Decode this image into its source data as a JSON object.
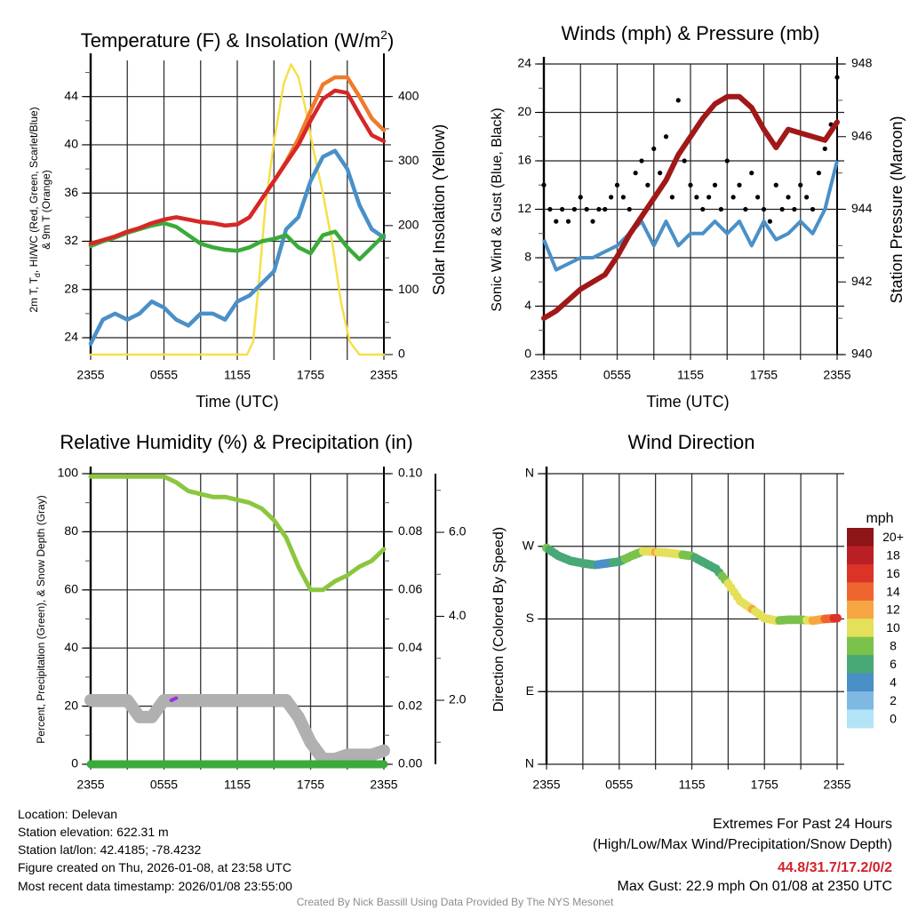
{
  "chart_data": [
    {
      "type": "line",
      "title_main": "Temperature (F) & Insolation (W/m",
      "title_sup": "2",
      "title_end": ")",
      "xlabel": "Time (UTC)",
      "ylabel_line1_a": "2m T, T",
      "ylabel_line1_sub": "d",
      "ylabel_line1_b": ", HI/WC (Red, Green, Scarlet/Blue)",
      "ylabel_line2": "& 9m T (Orange)",
      "ylabel_right": "Solar Insolation (Yellow)",
      "xticks": [
        "2355",
        "0555",
        "1155",
        "1755",
        "2355"
      ],
      "yticks_left": [
        "24",
        "28",
        "32",
        "36",
        "40",
        "44"
      ],
      "yticks_right": [
        "0",
        "100",
        "200",
        "300",
        "400"
      ],
      "ylim_left": [
        22.6,
        47.0
      ],
      "ylim_right": [
        0,
        456
      ],
      "x_hours": [
        0,
        1,
        2,
        3,
        4,
        5,
        6,
        7,
        8,
        9,
        10,
        11,
        12,
        13,
        14,
        15,
        16,
        17,
        18,
        19,
        20,
        21,
        22,
        23,
        24
      ],
      "series": [
        {
          "name": "2m T",
          "color": "#d62728",
          "axis": "left",
          "values": [
            31.8,
            32.1,
            32.4,
            32.8,
            33.1,
            33.5,
            33.8,
            34.0,
            33.8,
            33.6,
            33.5,
            33.3,
            33.4,
            34.0,
            35.5,
            37.0,
            38.5,
            40.0,
            42.0,
            43.8,
            44.5,
            44.3,
            42.5,
            40.8,
            40.3
          ]
        },
        {
          "name": "9m T",
          "color": "#f07b2a",
          "axis": "left",
          "values": [
            31.8,
            32.1,
            32.4,
            32.8,
            33.1,
            33.5,
            33.8,
            34.0,
            33.8,
            33.6,
            33.5,
            33.3,
            33.4,
            34.0,
            35.5,
            37.0,
            38.6,
            40.5,
            42.8,
            45.0,
            45.6,
            45.6,
            44.0,
            42.2,
            41.2
          ]
        },
        {
          "name": "Td",
          "color": "#3aab3a",
          "axis": "left",
          "values": [
            31.6,
            32.0,
            32.3,
            32.7,
            33.0,
            33.3,
            33.5,
            33.2,
            32.5,
            31.8,
            31.5,
            31.3,
            31.2,
            31.5,
            32.0,
            32.2,
            32.5,
            31.5,
            31.0,
            32.5,
            32.8,
            31.5,
            30.5,
            31.5,
            32.5
          ]
        },
        {
          "name": "HI/WC",
          "color": "#4a90c8",
          "axis": "left",
          "values": [
            23.5,
            25.5,
            26.0,
            25.5,
            26.0,
            27.0,
            26.5,
            25.5,
            25.0,
            26.0,
            26.0,
            25.5,
            27.0,
            27.5,
            28.5,
            29.5,
            33.0,
            34.0,
            37.0,
            39.0,
            39.5,
            38.0,
            35.0,
            33.0,
            32.3
          ]
        },
        {
          "name": "Insolation",
          "color": "#f5e04a",
          "axis": "right",
          "x": [
            0,
            12.8,
            13.3,
            13.8,
            14.3,
            15.0,
            15.8,
            16.4,
            17.0,
            17.6,
            18.2,
            19.0,
            19.8,
            20.5,
            21.2,
            22.0,
            24
          ],
          "values": [
            0,
            0,
            20,
            120,
            230,
            330,
            420,
            450,
            430,
            380,
            320,
            250,
            170,
            80,
            20,
            0,
            0
          ]
        }
      ]
    },
    {
      "type": "line",
      "title": "Winds (mph) & Pressure (mb)",
      "xlabel": "Time (UTC)",
      "ylabel_left": "Sonic Wind & Gust (Blue, Black)",
      "ylabel_right": "Station Pressure (Maroon)",
      "xticks": [
        "2355",
        "0555",
        "1155",
        "1755",
        "2355"
      ],
      "yticks_left": [
        "0",
        "4",
        "8",
        "12",
        "16",
        "20",
        "24"
      ],
      "yticks_right": [
        "940",
        "942",
        "944",
        "946",
        "948"
      ],
      "ylim_left": [
        0,
        24
      ],
      "ylim_right": [
        940,
        948
      ],
      "x_hours": [
        0,
        1,
        2,
        3,
        4,
        5,
        6,
        7,
        8,
        9,
        10,
        11,
        12,
        13,
        14,
        15,
        16,
        17,
        18,
        19,
        20,
        21,
        22,
        23,
        24
      ],
      "series": [
        {
          "name": "Sonic Wind",
          "color": "#4a90c8",
          "axis": "left",
          "values": [
            9.5,
            7.0,
            7.5,
            8.0,
            8.0,
            8.5,
            9.0,
            10.0,
            11.0,
            9.0,
            11.0,
            9.0,
            10.0,
            10.0,
            11.0,
            10.0,
            11.0,
            9.0,
            11.0,
            9.5,
            10.0,
            11.0,
            10.0,
            12.0,
            16.0
          ]
        },
        {
          "name": "Station Pressure",
          "color": "#a01818",
          "axis": "right",
          "values": [
            941.0,
            941.2,
            941.5,
            941.8,
            942.0,
            942.2,
            942.7,
            943.3,
            943.8,
            944.3,
            944.8,
            945.5,
            946.0,
            946.5,
            946.9,
            947.1,
            947.1,
            946.8,
            946.2,
            945.7,
            946.2,
            946.1,
            946.0,
            945.9,
            946.4
          ]
        }
      ],
      "gust_points": {
        "color": "#000000",
        "step_hours": 0.5,
        "values": [
          14,
          12,
          11,
          12,
          11,
          12,
          13,
          12,
          11,
          12,
          12,
          13,
          14,
          13,
          12,
          15,
          16,
          14,
          17,
          15,
          18,
          13,
          21,
          16,
          14,
          13,
          12,
          13,
          14,
          12,
          16,
          13,
          14,
          12,
          15,
          13,
          12,
          11,
          14,
          12,
          13,
          12,
          14,
          13,
          12,
          15,
          17,
          19,
          22.9
        ]
      }
    },
    {
      "type": "line",
      "title": "Relative Humidity (%) & Precipitation (in)",
      "ylabel_left": "Percent, Precipitation (Green), & Snow Depth (Gray)",
      "xticks": [
        "2355",
        "0555",
        "1155",
        "1755",
        "2355"
      ],
      "yticks_left": [
        "0",
        "20",
        "40",
        "60",
        "80",
        "100"
      ],
      "yticks_right": [
        "0.00",
        "0.02",
        "0.04",
        "0.06",
        "0.08",
        "0.10"
      ],
      "yticks_snow": [
        "2.0",
        "4.0",
        "6.0"
      ],
      "ylim_left": [
        0,
        100
      ],
      "ylim_right": [
        0,
        0.1
      ],
      "x_hours": [
        0,
        1,
        2,
        3,
        4,
        5,
        6,
        7,
        8,
        9,
        10,
        11,
        12,
        13,
        14,
        15,
        16,
        17,
        18,
        19,
        20,
        21,
        22,
        23,
        24
      ],
      "series": [
        {
          "name": "Relative Humidity",
          "color": "#8cc63f",
          "values": [
            99,
            99,
            99,
            99,
            99,
            99,
            99,
            97,
            94,
            93,
            92,
            92,
            91,
            90,
            88,
            84,
            78,
            68,
            60,
            60,
            63,
            65,
            68,
            70,
            74
          ]
        },
        {
          "name": "Precipitation",
          "color": "#3aab3a",
          "values": [
            0,
            0,
            0,
            0,
            0,
            0,
            0,
            0,
            0,
            0,
            0,
            0,
            0,
            0,
            0,
            0,
            0,
            0,
            0,
            0,
            0,
            0,
            0,
            0,
            0
          ]
        },
        {
          "name": "Snow Depth",
          "color": "#b0b0b0",
          "values": [
            2.0,
            2.0,
            2.0,
            2.0,
            1.6,
            1.6,
            2.0,
            2.0,
            2.0,
            2.0,
            2.0,
            2.0,
            2.0,
            2.0,
            2.0,
            2.0,
            2.0,
            1.6,
            1.0,
            0.6,
            0.6,
            0.7,
            0.7,
            0.7,
            0.8
          ]
        }
      ],
      "highlight_segment": {
        "color": "#9b30e0",
        "x": [
          6.6,
          7.0
        ],
        "snow_values": [
          2.0,
          2.05
        ]
      }
    },
    {
      "type": "scatter",
      "title": "Wind Direction",
      "ylabel_left": "Direction (Colored By Speed)",
      "xticks": [
        "2355",
        "0555",
        "1155",
        "1755",
        "2355"
      ],
      "yticks_left": [
        "N",
        "E",
        "S",
        "W",
        "N"
      ],
      "ylim": [
        0,
        360
      ],
      "colorbar": {
        "title": "mph",
        "labels": [
          "20+",
          "18",
          "16",
          "14",
          "12",
          "10",
          "8",
          "6",
          "4",
          "2",
          "0"
        ],
        "colors": [
          "#8e1518",
          "#bb1f26",
          "#dc3328",
          "#ef6530",
          "#f6a744",
          "#e5e05a",
          "#7bc24c",
          "#48a876",
          "#4a8fc6",
          "#7fb9e3",
          "#b3e3f7"
        ]
      },
      "x_hours": [
        0,
        1,
        2,
        3,
        4,
        5,
        6,
        7,
        8,
        9,
        10,
        11,
        12,
        13,
        14,
        15,
        16,
        17,
        18,
        19,
        20,
        21,
        22,
        23,
        24
      ],
      "direction_deg": [
        268,
        258,
        252,
        249,
        247,
        249,
        251,
        258,
        264,
        263,
        262,
        260,
        258,
        250,
        242,
        224,
        202,
        192,
        181,
        178,
        179,
        179,
        178,
        180,
        181
      ],
      "speed_mph": [
        8,
        7,
        7,
        6,
        6,
        5,
        7,
        9,
        10,
        12,
        11,
        10,
        8,
        7,
        7,
        10,
        11,
        12,
        10,
        10,
        9,
        8,
        12,
        14,
        17
      ]
    }
  ],
  "info": {
    "location": "Location: Delevan",
    "elevation": "Station elevation: 622.31 m",
    "latlon": "Station lat/lon: 42.4185; -78.4232",
    "created": "Figure created on Thu, 2026-01-08, at 23:58 UTC",
    "recent": "Most recent data timestamp: 2026/01/08 23:55:00"
  },
  "extremes": {
    "title": "Extremes For Past 24 Hours",
    "subtitle": "(High/Low/Max Wind/Precipitation/Snow Depth)",
    "values": "44.8/31.7/17.2/0/2",
    "max_gust": "Max Gust: 22.9 mph On 01/08 at 2350 UTC"
  },
  "footer": "Created By Nick Bassill Using Data Provided By The NYS Mesonet"
}
